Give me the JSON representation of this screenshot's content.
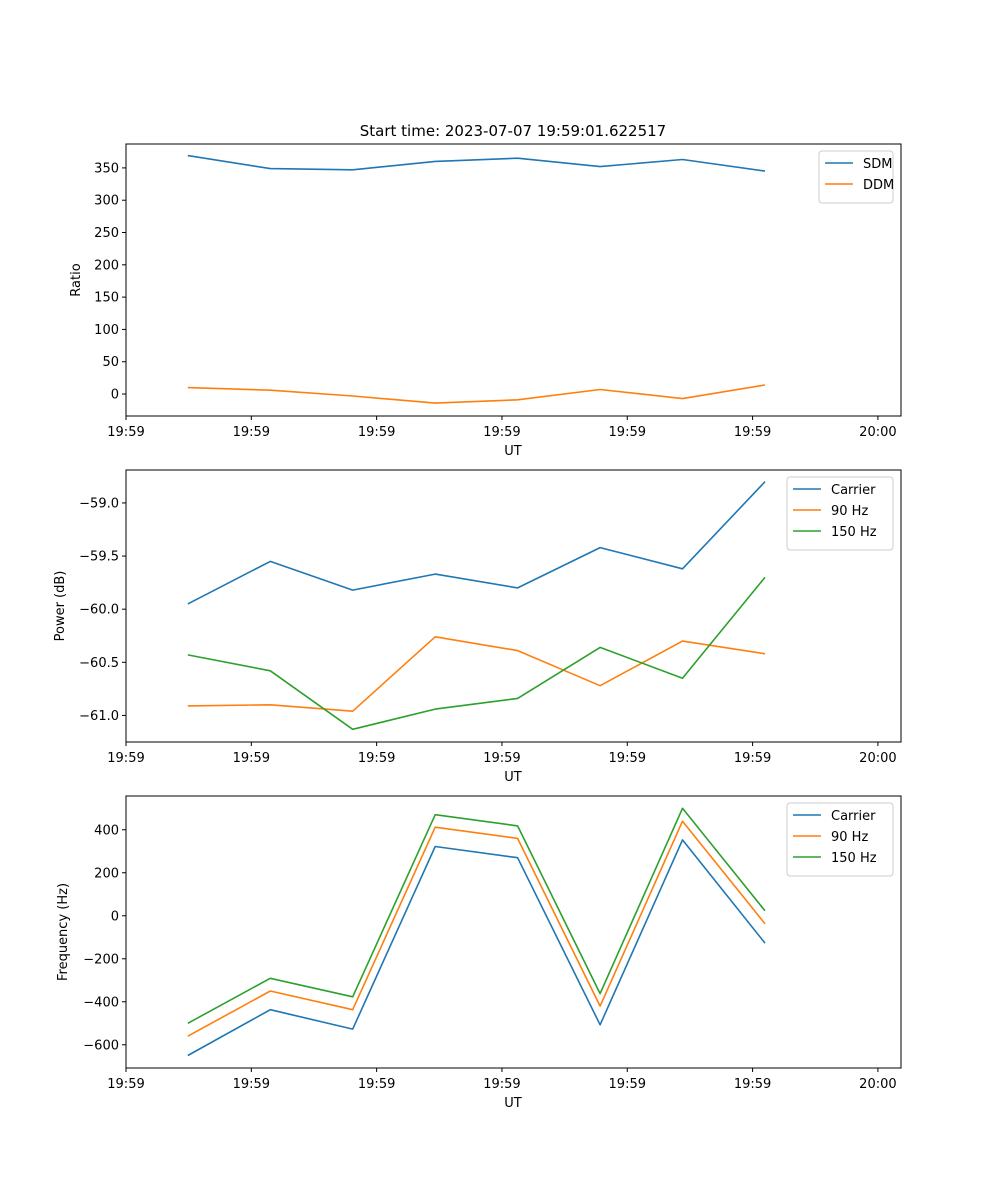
{
  "title": "Start time: 2023-07-07 19:59:01.622517",
  "colors": {
    "c0": "#1f77b4",
    "c1": "#ff7f0e",
    "c2": "#2ca02c"
  },
  "chart_data": [
    {
      "type": "line",
      "xlabel": "UT",
      "ylabel": "Ratio",
      "x_tick_labels": [
        "19:59",
        "19:59",
        "19:59",
        "19:59",
        "19:59",
        "19:59",
        "20:00"
      ],
      "y_ticks": [
        0,
        50,
        100,
        150,
        200,
        250,
        300,
        350
      ],
      "y_tick_labels": [
        "0",
        "50",
        "100",
        "150",
        "200",
        "250",
        "300",
        "350"
      ],
      "ylim": [
        -34,
        387
      ],
      "x": [
        0,
        1,
        2,
        3,
        4,
        5,
        6,
        7
      ],
      "legend_loc": "top-right",
      "series": [
        {
          "name": "SDM",
          "values": [
            369,
            349,
            347,
            360,
            365,
            352,
            363,
            345
          ]
        },
        {
          "name": "DDM",
          "values": [
            10,
            6,
            -3,
            -14,
            -9,
            7,
            -7,
            14
          ]
        }
      ]
    },
    {
      "type": "line",
      "xlabel": "UT",
      "ylabel": "Power (dB)",
      "x_tick_labels": [
        "19:59",
        "19:59",
        "19:59",
        "19:59",
        "19:59",
        "19:59",
        "20:00"
      ],
      "y_ticks": [
        -61.0,
        -60.5,
        -60.0,
        -59.5,
        -59.0
      ],
      "y_tick_labels": [
        "−61.0",
        "−60.5",
        "−60.0",
        "−59.5",
        "−59.0"
      ],
      "ylim": [
        -61.25,
        -58.69
      ],
      "x": [
        0,
        1,
        2,
        3,
        4,
        5,
        6,
        7
      ],
      "legend_loc": "top-right",
      "series": [
        {
          "name": "Carrier",
          "values": [
            -59.95,
            -59.55,
            -59.82,
            -59.67,
            -59.8,
            -59.42,
            -59.62,
            -58.8
          ]
        },
        {
          "name": "90 Hz",
          "values": [
            -60.91,
            -60.9,
            -60.96,
            -60.26,
            -60.39,
            -60.72,
            -60.3,
            -60.42
          ]
        },
        {
          "name": "150 Hz",
          "values": [
            -60.43,
            -60.58,
            -61.13,
            -60.94,
            -60.84,
            -60.36,
            -60.65,
            -59.7
          ]
        }
      ]
    },
    {
      "type": "line",
      "xlabel": "UT",
      "ylabel": "Frequency (Hz)",
      "x_tick_labels": [
        "19:59",
        "19:59",
        "19:59",
        "19:59",
        "19:59",
        "19:59",
        "20:00"
      ],
      "y_ticks": [
        -600,
        -400,
        -200,
        0,
        200,
        400
      ],
      "y_tick_labels": [
        "−600",
        "−400",
        "−200",
        "0",
        "200",
        "400"
      ],
      "ylim": [
        -708,
        557
      ],
      "x": [
        0,
        1,
        2,
        3,
        4,
        5,
        6,
        7
      ],
      "legend_loc": "top-right",
      "series": [
        {
          "name": "Carrier",
          "values": [
            -650,
            -437,
            -527,
            322,
            270,
            -507,
            353,
            -127
          ]
        },
        {
          "name": "90 Hz",
          "values": [
            -560,
            -350,
            -437,
            412,
            360,
            -420,
            440,
            -37
          ]
        },
        {
          "name": "150 Hz",
          "values": [
            -500,
            -291,
            -377,
            470,
            418,
            -362,
            500,
            23
          ]
        }
      ]
    }
  ]
}
